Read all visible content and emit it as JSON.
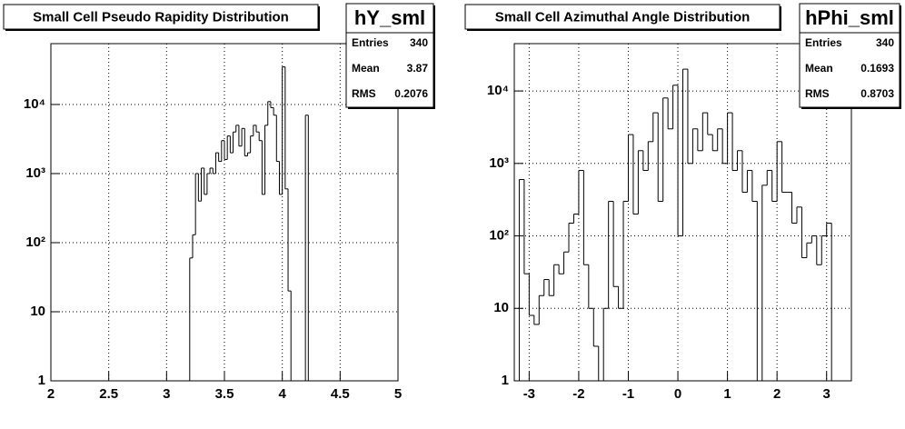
{
  "chart_data": [
    {
      "type": "histogram",
      "title": "Small Cell Pseudo Rapidity Distribution",
      "name": "hY_sml",
      "stats": [
        {
          "label": "Entries",
          "value": 340
        },
        {
          "label": "Mean",
          "value": 3.87
        },
        {
          "label": "RMS",
          "value": 0.2076
        }
      ],
      "log_y": true,
      "grid": true,
      "color": "#000000",
      "xlim": [
        2,
        5
      ],
      "ylim": [
        1,
        76000
      ],
      "xticks": [
        2,
        2.5,
        3,
        3.5,
        4,
        4.5,
        5
      ],
      "yticks": [
        1,
        10,
        {
          "value": 100,
          "label": "10²"
        },
        {
          "value": 1000,
          "label": "10³"
        },
        {
          "value": 10000,
          "label": "10⁴"
        }
      ],
      "bins": [
        3.2,
        3.225,
        3.25,
        3.275,
        3.3,
        3.325,
        3.35,
        3.375,
        3.4,
        3.425,
        3.45,
        3.475,
        3.5,
        3.525,
        3.55,
        3.575,
        3.6,
        3.625,
        3.65,
        3.675,
        3.7,
        3.725,
        3.75,
        3.775,
        3.8,
        3.825,
        3.85,
        3.875,
        3.9,
        3.925,
        3.95,
        3.975,
        4.0,
        4.025,
        4.05,
        4.075,
        4.1,
        4.125,
        4.15,
        4.175,
        4.2,
        4.225
      ],
      "values": [
        60,
        130,
        1000,
        400,
        1200,
        500,
        1000,
        1200,
        1000,
        2000,
        1500,
        3000,
        1600,
        3500,
        2000,
        4000,
        5000,
        2500,
        4500,
        1800,
        2000,
        3500,
        5000,
        4000,
        3000,
        500,
        5000,
        11000,
        9000,
        7000,
        1500,
        500,
        35000,
        600,
        20,
        1,
        0,
        0,
        0,
        0,
        7000
      ]
    },
    {
      "type": "histogram",
      "title": "Small Cell Azimuthal Angle Distribution",
      "name": "hPhi_sml",
      "stats": [
        {
          "label": "Entries",
          "value": 340
        },
        {
          "label": "Mean",
          "value": 0.1693
        },
        {
          "label": "RMS",
          "value": 0.8703
        }
      ],
      "log_y": true,
      "grid": true,
      "color": "#000000",
      "xlim": [
        -3.3,
        3.5
      ],
      "ylim": [
        1,
        45000
      ],
      "xticks": [
        -3,
        -2,
        -1,
        0,
        1,
        2,
        3
      ],
      "yticks": [
        1,
        10,
        {
          "value": 100,
          "label": "10²"
        },
        {
          "value": 1000,
          "label": "10³"
        },
        {
          "value": 10000,
          "label": "10⁴"
        }
      ],
      "bins": [
        -3.2,
        -3.1,
        -3.0,
        -2.9,
        -2.8,
        -2.7,
        -2.6,
        -2.5,
        -2.4,
        -2.3,
        -2.2,
        -2.1,
        -2.0,
        -1.9,
        -1.8,
        -1.7,
        -1.6,
        -1.5,
        -1.4,
        -1.3,
        -1.2,
        -1.1,
        -1.0,
        -0.9,
        -0.8,
        -0.7,
        -0.6,
        -0.5,
        -0.4,
        -0.3,
        -0.2,
        -0.1,
        0.0,
        0.1,
        0.2,
        0.3,
        0.4,
        0.5,
        0.6,
        0.7,
        0.8,
        0.9,
        1.0,
        1.1,
        1.2,
        1.3,
        1.4,
        1.5,
        1.6,
        1.7,
        1.8,
        1.9,
        2.0,
        2.1,
        2.2,
        2.3,
        2.4,
        2.5,
        2.6,
        2.7,
        2.8,
        2.9,
        3.0,
        3.1
      ],
      "values": [
        600,
        30,
        8,
        6,
        15,
        25,
        15,
        40,
        30,
        60,
        150,
        200,
        800,
        40,
        10,
        3,
        1,
        10,
        300,
        20,
        10,
        300,
        2500,
        200,
        1500,
        800,
        2000,
        5000,
        300,
        8000,
        3000,
        12000,
        100,
        20000,
        1000,
        3000,
        1500,
        5000,
        2500,
        1500,
        3000,
        1000,
        5000,
        800,
        1500,
        400,
        800,
        300,
        1,
        500,
        800,
        300,
        2000,
        400,
        400,
        150,
        250,
        50,
        80,
        100,
        40,
        100,
        150
      ]
    }
  ]
}
